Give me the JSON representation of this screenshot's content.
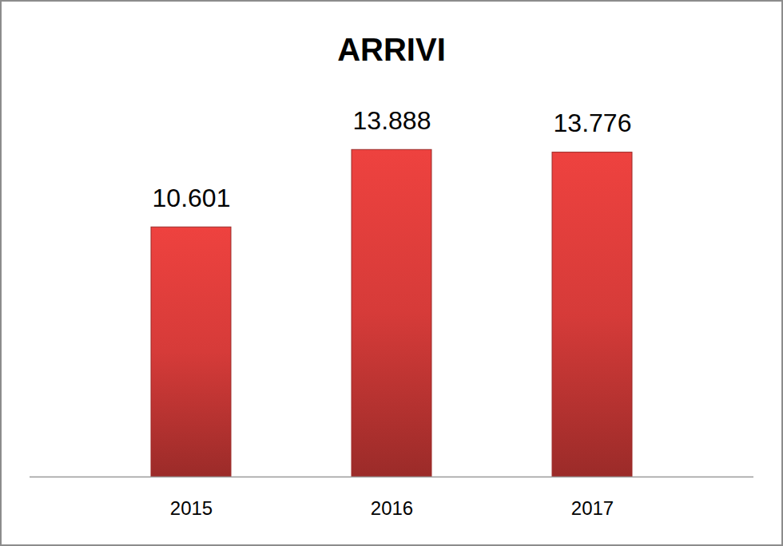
{
  "chart_data": {
    "type": "bar",
    "title": "ARRIVI",
    "categories": [
      "2015",
      "2016",
      "2017"
    ],
    "values": [
      10601,
      13888,
      13776
    ],
    "value_labels": [
      "10.601",
      "13.888",
      "13.776"
    ],
    "color": "#d63b39",
    "ylim": [
      0,
      16000
    ],
    "data_labels": true,
    "tick_labels": "x",
    "grid": false
  }
}
